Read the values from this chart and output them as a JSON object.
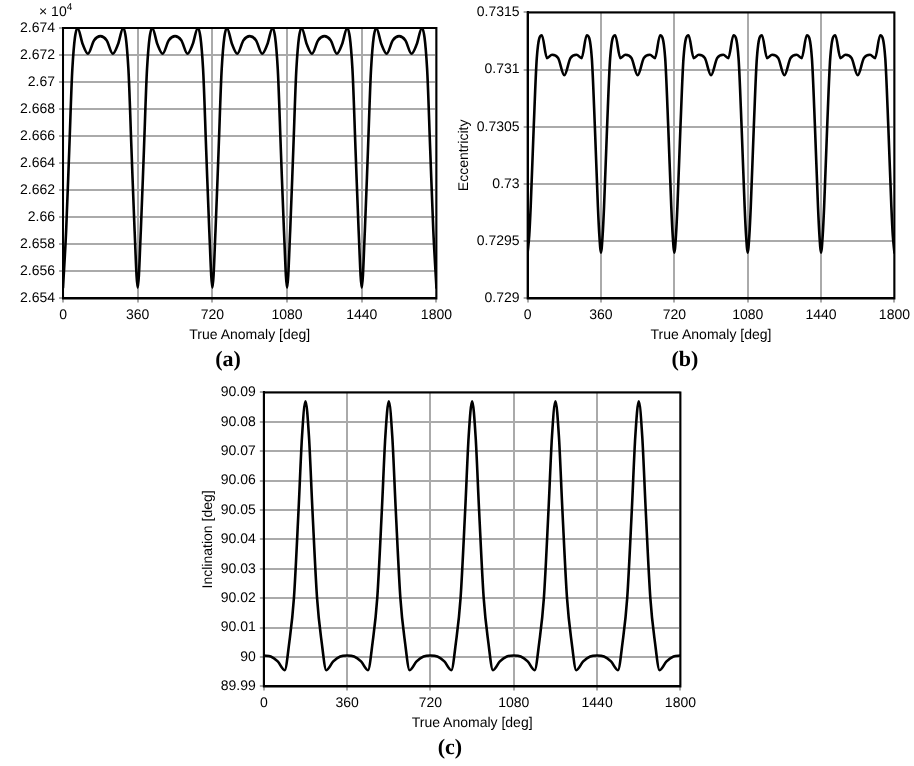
{
  "chart_data": [
    {
      "type": "line",
      "xlabel": "True Anomaly [deg]",
      "annotations": [
        "× 10$^{4}$",
        "(a)"
      ],
      "grid": true,
      "legend": false,
      "marker": "none",
      "line_style": "solid",
      "x": [
        0,
        15,
        30,
        45,
        70,
        95,
        120,
        150,
        180,
        210,
        240,
        265,
        290,
        315,
        330,
        345,
        360,
        375,
        390,
        405,
        430,
        455,
        480,
        510,
        540,
        570,
        600,
        625,
        650,
        675,
        690,
        705,
        720,
        735,
        750,
        765,
        790,
        815,
        840,
        870,
        900,
        930,
        960,
        985,
        1010,
        1035,
        1050,
        1065,
        1080,
        1095,
        1110,
        1125,
        1150,
        1175,
        1200,
        1230,
        1260,
        1290,
        1320,
        1345,
        1370,
        1395,
        1410,
        1425,
        1440,
        1455,
        1470,
        1485,
        1510,
        1535,
        1560,
        1590,
        1620,
        1650,
        1680,
        1705,
        1730,
        1755,
        1770,
        1785,
        1800
      ],
      "series": [
        {
          "color": "#000000",
          "values": [
            2.6548,
            2.659,
            2.665,
            2.671,
            2.674,
            2.6728,
            2.6721,
            2.6731,
            2.6734,
            2.6731,
            2.6721,
            2.6728,
            2.674,
            2.671,
            2.665,
            2.659,
            2.6548,
            2.659,
            2.665,
            2.671,
            2.674,
            2.6728,
            2.6721,
            2.6731,
            2.6734,
            2.6731,
            2.6721,
            2.6728,
            2.674,
            2.671,
            2.665,
            2.659,
            2.6548,
            2.659,
            2.665,
            2.671,
            2.674,
            2.6728,
            2.6721,
            2.6731,
            2.6734,
            2.6731,
            2.6721,
            2.6728,
            2.674,
            2.671,
            2.665,
            2.659,
            2.6548,
            2.659,
            2.665,
            2.671,
            2.674,
            2.6728,
            2.6721,
            2.6731,
            2.6734,
            2.6731,
            2.6721,
            2.6728,
            2.674,
            2.671,
            2.665,
            2.659,
            2.6548,
            2.659,
            2.665,
            2.671,
            2.674,
            2.6728,
            2.6721,
            2.6731,
            2.6734,
            2.6731,
            2.6721,
            2.6728,
            2.674,
            2.671,
            2.665,
            2.659,
            2.6548
          ]
        }
      ],
      "xlim": [
        0,
        1800
      ],
      "xticks": [
        0,
        360,
        720,
        1080,
        1440,
        1800
      ],
      "ylim": [
        2.654,
        2.674
      ],
      "yticks": [
        2.654,
        2.656,
        2.658,
        2.66,
        2.662,
        2.664,
        2.666,
        2.668,
        2.67,
        2.672,
        2.674
      ]
    },
    {
      "type": "line",
      "xlabel": "True Anomaly [deg]",
      "ylabel": "Eccentricity",
      "annotations": [
        "(b)"
      ],
      "grid": true,
      "legend": false,
      "marker": "none",
      "line_style": "solid",
      "x": [
        0,
        8,
        15,
        30,
        45,
        70,
        95,
        120,
        150,
        180,
        210,
        240,
        265,
        290,
        315,
        330,
        345,
        352,
        360,
        368,
        375,
        390,
        405,
        430,
        455,
        480,
        510,
        540,
        570,
        600,
        625,
        650,
        675,
        690,
        705,
        712,
        720,
        728,
        735,
        750,
        765,
        790,
        815,
        840,
        870,
        900,
        930,
        960,
        985,
        1010,
        1035,
        1050,
        1065,
        1072,
        1080,
        1088,
        1095,
        1110,
        1125,
        1150,
        1175,
        1200,
        1230,
        1260,
        1290,
        1320,
        1345,
        1370,
        1395,
        1410,
        1425,
        1432,
        1440,
        1448,
        1455,
        1470,
        1485,
        1510,
        1535,
        1560,
        1590,
        1620,
        1650,
        1680,
        1705,
        1730,
        1755,
        1770,
        1785,
        1792,
        1800
      ],
      "series": [
        {
          "color": "#000000",
          "values": [
            0.7294,
            0.72955,
            0.7298,
            0.7305,
            0.7311,
            0.7313,
            0.7311,
            0.73113,
            0.7311,
            0.73095,
            0.7311,
            0.73113,
            0.7311,
            0.7313,
            0.7311,
            0.7305,
            0.7298,
            0.72955,
            0.7294,
            0.72955,
            0.7298,
            0.7305,
            0.7311,
            0.7313,
            0.7311,
            0.73113,
            0.7311,
            0.73095,
            0.7311,
            0.73113,
            0.7311,
            0.7313,
            0.7311,
            0.7305,
            0.7298,
            0.72955,
            0.7294,
            0.72955,
            0.7298,
            0.7305,
            0.7311,
            0.7313,
            0.7311,
            0.73113,
            0.7311,
            0.73095,
            0.7311,
            0.73113,
            0.7311,
            0.7313,
            0.7311,
            0.7305,
            0.7298,
            0.72955,
            0.7294,
            0.72955,
            0.7298,
            0.7305,
            0.7311,
            0.7313,
            0.7311,
            0.73113,
            0.7311,
            0.73095,
            0.7311,
            0.73113,
            0.7311,
            0.7313,
            0.7311,
            0.7305,
            0.7298,
            0.72955,
            0.7294,
            0.72955,
            0.7298,
            0.7305,
            0.7311,
            0.7313,
            0.7311,
            0.73113,
            0.7311,
            0.73095,
            0.7311,
            0.73113,
            0.7311,
            0.7313,
            0.7311,
            0.7305,
            0.7298,
            0.72955,
            0.7294
          ]
        }
      ],
      "xlim": [
        0,
        1800
      ],
      "xticks": [
        0,
        360,
        720,
        1080,
        1440,
        1800
      ],
      "ylim": [
        0.729,
        0.7315
      ],
      "yticks": [
        0.729,
        0.7295,
        0.73,
        0.7305,
        0.731,
        0.7315
      ]
    },
    {
      "type": "line",
      "xlabel": "True Anomaly [deg]",
      "ylabel": "Inclination [deg]",
      "annotations": [
        "(c)"
      ],
      "grid": true,
      "legend": false,
      "marker": "none",
      "line_style": "solid",
      "x": [
        0,
        30,
        60,
        90,
        110,
        130,
        150,
        165,
        180,
        195,
        210,
        230,
        250,
        270,
        300,
        330,
        360,
        390,
        420,
        450,
        470,
        490,
        510,
        525,
        540,
        555,
        570,
        590,
        610,
        630,
        660,
        690,
        720,
        750,
        780,
        810,
        830,
        850,
        870,
        885,
        900,
        915,
        930,
        950,
        970,
        990,
        1020,
        1050,
        1080,
        1110,
        1140,
        1170,
        1190,
        1210,
        1230,
        1245,
        1260,
        1275,
        1290,
        1310,
        1330,
        1350,
        1380,
        1410,
        1440,
        1470,
        1500,
        1530,
        1550,
        1570,
        1590,
        1605,
        1620,
        1635,
        1650,
        1670,
        1690,
        1710,
        1740,
        1770,
        1800
      ],
      "series": [
        {
          "color": "#000000",
          "values": [
            90.0005,
            90.0002,
            89.9985,
            89.9955,
            90.005,
            90.02,
            90.05,
            90.075,
            90.087,
            90.075,
            90.05,
            90.02,
            90.005,
            89.9955,
            89.9985,
            90.0002,
            90.0005,
            90.0002,
            89.9985,
            89.9955,
            90.005,
            90.02,
            90.05,
            90.075,
            90.087,
            90.075,
            90.05,
            90.02,
            90.005,
            89.9955,
            89.9985,
            90.0002,
            90.0005,
            90.0002,
            89.9985,
            89.9955,
            90.005,
            90.02,
            90.05,
            90.075,
            90.087,
            90.075,
            90.05,
            90.02,
            90.005,
            89.9955,
            89.9985,
            90.0002,
            90.0005,
            90.0002,
            89.9985,
            89.9955,
            90.005,
            90.02,
            90.05,
            90.075,
            90.087,
            90.075,
            90.05,
            90.02,
            90.005,
            89.9955,
            89.9985,
            90.0002,
            90.0005,
            90.0002,
            89.9985,
            89.9955,
            90.005,
            90.02,
            90.05,
            90.075,
            90.087,
            90.075,
            90.05,
            90.02,
            90.005,
            89.9955,
            89.9985,
            90.0002,
            90.0005
          ]
        }
      ],
      "xlim": [
        0,
        1800
      ],
      "xticks": [
        0,
        360,
        720,
        1080,
        1440,
        1800
      ],
      "ylim": [
        89.99,
        90.09
      ],
      "yticks": [
        89.99,
        90,
        90.01,
        90.02,
        90.03,
        90.04,
        90.05,
        90.06,
        90.07,
        90.08,
        90.09
      ]
    }
  ]
}
